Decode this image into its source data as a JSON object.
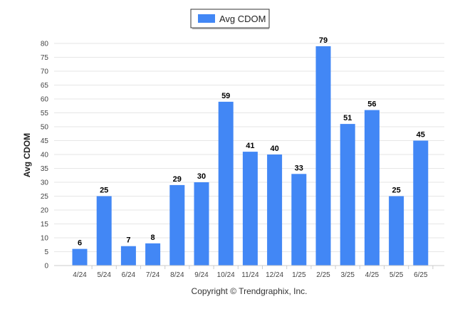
{
  "chart_data": {
    "type": "bar",
    "title": "",
    "xlabel": "",
    "ylabel": "Avg CDOM",
    "categories": [
      "4/24",
      "5/24",
      "6/24",
      "7/24",
      "8/24",
      "9/24",
      "10/24",
      "11/24",
      "12/24",
      "1/25",
      "2/25",
      "3/25",
      "4/25",
      "5/25",
      "6/25"
    ],
    "series": [
      {
        "name": "Avg CDOM",
        "color": "#4287f5",
        "values": [
          6,
          25,
          7,
          8,
          29,
          30,
          59,
          41,
          40,
          33,
          79,
          51,
          56,
          25,
          45
        ]
      }
    ],
    "ylim": [
      0,
      80
    ],
    "yticks": [
      0,
      5,
      10,
      15,
      20,
      25,
      30,
      35,
      40,
      45,
      50,
      55,
      60,
      65,
      70,
      75,
      80
    ],
    "grid": true,
    "legend_position": "top-center",
    "data_labels": true
  },
  "footer": {
    "copyright": "Copyright © Trendgraphix, Inc."
  }
}
